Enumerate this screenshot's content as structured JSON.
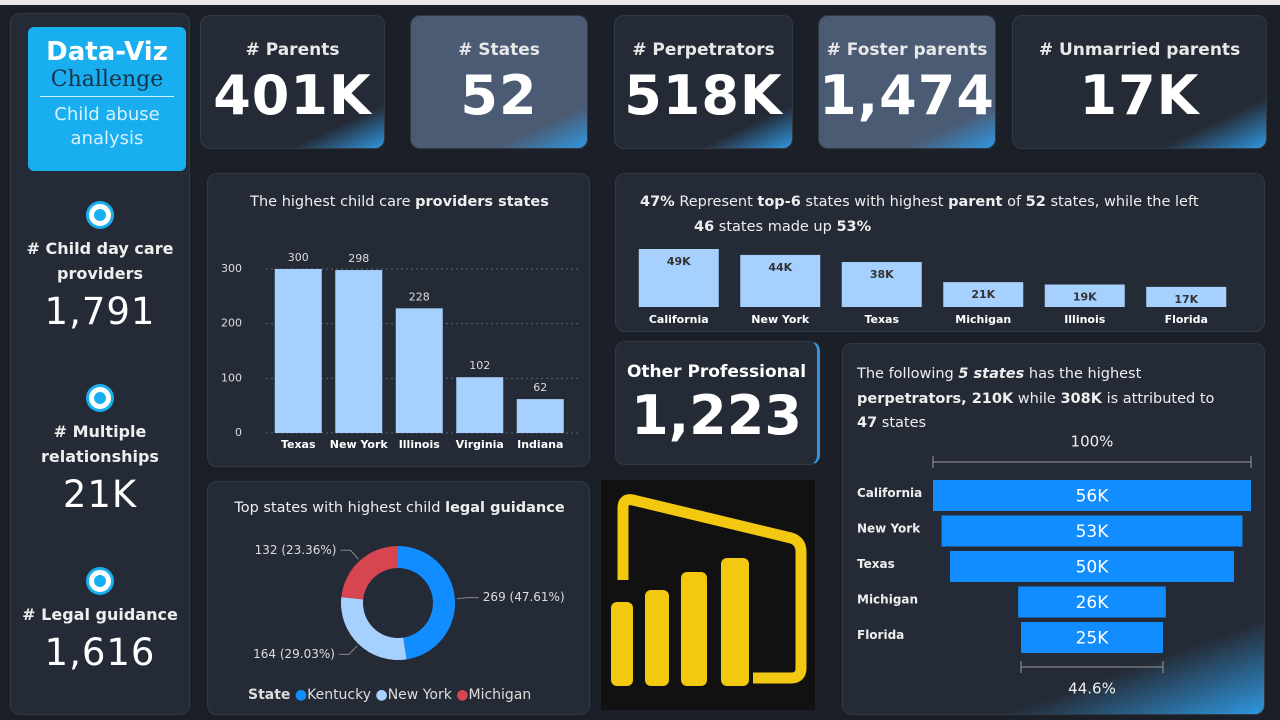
{
  "logo": {
    "title": "Data-Viz",
    "subtitle": "Challenge",
    "caption": "Child abuse analysis"
  },
  "kpis": [
    {
      "label": "# Parents",
      "value": "401K",
      "color": "#252b36"
    },
    {
      "label": "# States",
      "value": "52",
      "color": "#4b5b74"
    },
    {
      "label": "# Perpetrators",
      "value": "518K",
      "color": "#252b36"
    },
    {
      "label": "# Foster parents",
      "value": "1,474",
      "color": "#4b5b74"
    },
    {
      "label": "# Unmarried parents",
      "value": "17K",
      "color": "#252b36"
    }
  ],
  "sidebar": [
    {
      "label": "# Child day care providers",
      "value": "1,791"
    },
    {
      "label": "# Multiple relationships",
      "value": "21K"
    },
    {
      "label": "# Legal guidance",
      "value": "1,616"
    }
  ],
  "other_professional": {
    "label": "Other Professional",
    "value": "1,223"
  },
  "chart_data": [
    {
      "type": "bar",
      "title": [
        [
          {
            "text": "The highest child care ",
            "bold": false
          },
          {
            "text": "providers states",
            "bold": true
          }
        ]
      ],
      "categories": [
        "Texas",
        "New York",
        "Illinois",
        "Virginia",
        "Indiana"
      ],
      "values": [
        300,
        298,
        228,
        102,
        62
      ],
      "color": "#a6d1ff",
      "ylim": [
        0,
        310
      ],
      "yticks": [
        0,
        100,
        200,
        300
      ],
      "grid": true
    },
    {
      "type": "bar",
      "title": [
        [
          {
            "text": "47%",
            "bold": true
          },
          {
            "text": " Represent ",
            "bold": false
          },
          {
            "text": "top-6",
            "bold": true
          },
          {
            "text": " states with highest ",
            "bold": false
          },
          {
            "text": "parent",
            "bold": true
          },
          {
            "text": " of ",
            "bold": false
          },
          {
            "text": "52",
            "bold": true
          },
          {
            "text": " states, while the left",
            "bold": false
          }
        ],
        [
          {
            "text": "46",
            "bold": true
          },
          {
            "text": " states made up ",
            "bold": false
          },
          {
            "text": "53%",
            "bold": true
          }
        ]
      ],
      "categories": [
        "California",
        "New York",
        "Texas",
        "Michigan",
        "Illinois",
        "Florida"
      ],
      "values": [
        49000,
        44000,
        38000,
        21000,
        19000,
        17000
      ],
      "value_labels": [
        "49K",
        "44K",
        "38K",
        "21K",
        "19K",
        "17K"
      ],
      "color": "#a6d1ff"
    },
    {
      "type": "donut",
      "title": [
        [
          {
            "text": "Top states with highest child ",
            "bold": false
          },
          {
            "text": "legal guidance",
            "bold": true
          }
        ]
      ],
      "legend_title": "State",
      "categories": [
        "Kentucky",
        "New York",
        "Michigan"
      ],
      "values": [
        269,
        164,
        132
      ],
      "value_labels": [
        "269 (47.61%)",
        "164 (29.03%)",
        "132 (23.36%)"
      ],
      "colors": [
        "#118dff",
        "#a6d1ff",
        "#d64550"
      ]
    },
    {
      "type": "funnel",
      "title": [
        [
          {
            "text": "The following ",
            "bold": false
          },
          {
            "text": "5 states",
            "bold": true,
            "italic": true
          },
          {
            "text": " has the highest",
            "bold": false
          }
        ],
        [
          {
            "text": "perpetrators, ",
            "bold": true
          },
          {
            "text": "210K",
            "bold": true
          },
          {
            "text": "  while ",
            "bold": false
          },
          {
            "text": "308K",
            "bold": true
          },
          {
            "text": " is attributed to",
            "bold": false
          }
        ],
        [
          {
            "text": "47",
            "bold": true
          },
          {
            "text": " states",
            "bold": false
          }
        ]
      ],
      "categories": [
        "California",
        "New York",
        "Texas",
        "Michigan",
        "Florida"
      ],
      "values": [
        56000,
        53000,
        50000,
        26000,
        25000
      ],
      "value_labels": [
        "56K",
        "53K",
        "50K",
        "26K",
        "25K"
      ],
      "top_label": "100%",
      "bottom_label": "44.6%",
      "color": "#118dff"
    }
  ]
}
